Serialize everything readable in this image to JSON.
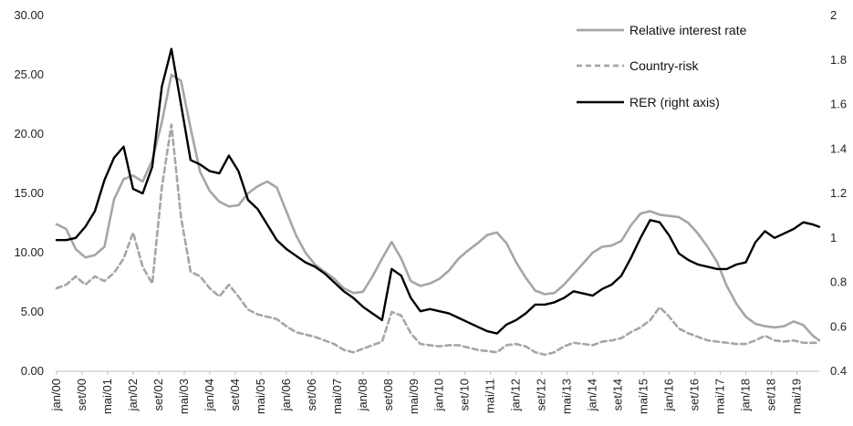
{
  "chart_data": {
    "type": "line",
    "title": "",
    "xlabel": "",
    "ylabel_left": "",
    "ylabel_right": "",
    "grid": false,
    "legend_position": "top-right",
    "left_axis": {
      "min": 0,
      "max": 30,
      "step": 5,
      "tick_labels": [
        "0.00",
        "5.00",
        "10.00",
        "15.00",
        "20.00",
        "25.00",
        "30.00"
      ]
    },
    "right_axis": {
      "min": 0.4,
      "max": 2.0,
      "step": 0.2,
      "tick_labels": [
        "0.4",
        "0.6",
        "0.8",
        "1",
        "1.2",
        "1.4",
        "1.6",
        "1.8",
        "2"
      ]
    },
    "x_range": [
      "2000-01",
      "2019-12"
    ],
    "x_tick_labels": [
      "jan/00",
      "set/00",
      "mai/01",
      "jan/02",
      "set/02",
      "mai/03",
      "jan/04",
      "set/04",
      "mai/05",
      "jan/06",
      "set/06",
      "mai/07",
      "jan/08",
      "set/08",
      "mai/09",
      "jan/10",
      "set/10",
      "mai/11",
      "jan/12",
      "set/12",
      "mai/13",
      "jan/14",
      "set/14",
      "mai/15",
      "jan/16",
      "set/16",
      "mai/17",
      "jan/18",
      "set/18",
      "mai/19"
    ],
    "series": [
      {
        "name": "Relative interest rate",
        "axis": "left",
        "color": "#a6a6a6",
        "style": "solid",
        "points": [
          [
            "2000-01",
            12.4
          ],
          [
            "2000-04",
            12.0
          ],
          [
            "2000-07",
            10.3
          ],
          [
            "2000-10",
            9.6
          ],
          [
            "2001-01",
            9.8
          ],
          [
            "2001-04",
            10.5
          ],
          [
            "2001-07",
            14.5
          ],
          [
            "2001-10",
            16.2
          ],
          [
            "2002-01",
            16.5
          ],
          [
            "2002-04",
            16.0
          ],
          [
            "2002-07",
            17.8
          ],
          [
            "2002-10",
            21.0
          ],
          [
            "2003-01",
            25.0
          ],
          [
            "2003-04",
            24.5
          ],
          [
            "2003-07",
            20.5
          ],
          [
            "2003-10",
            16.8
          ],
          [
            "2004-01",
            15.2
          ],
          [
            "2004-04",
            14.3
          ],
          [
            "2004-07",
            13.9
          ],
          [
            "2004-10",
            14.0
          ],
          [
            "2005-01",
            15.0
          ],
          [
            "2005-04",
            15.6
          ],
          [
            "2005-07",
            16.0
          ],
          [
            "2005-10",
            15.5
          ],
          [
            "2006-01",
            13.5
          ],
          [
            "2006-04",
            11.5
          ],
          [
            "2006-07",
            10.0
          ],
          [
            "2006-10",
            9.0
          ],
          [
            "2007-01",
            8.4
          ],
          [
            "2007-04",
            7.8
          ],
          [
            "2007-07",
            7.0
          ],
          [
            "2007-10",
            6.6
          ],
          [
            "2008-01",
            6.7
          ],
          [
            "2008-04",
            8.0
          ],
          [
            "2008-07",
            9.5
          ],
          [
            "2008-10",
            10.9
          ],
          [
            "2009-01",
            9.5
          ],
          [
            "2009-04",
            7.6
          ],
          [
            "2009-07",
            7.2
          ],
          [
            "2009-10",
            7.4
          ],
          [
            "2010-01",
            7.8
          ],
          [
            "2010-04",
            8.5
          ],
          [
            "2010-07",
            9.5
          ],
          [
            "2010-10",
            10.2
          ],
          [
            "2011-01",
            10.8
          ],
          [
            "2011-04",
            11.5
          ],
          [
            "2011-07",
            11.7
          ],
          [
            "2011-10",
            10.8
          ],
          [
            "2012-01",
            9.2
          ],
          [
            "2012-04",
            7.9
          ],
          [
            "2012-07",
            6.8
          ],
          [
            "2012-10",
            6.5
          ],
          [
            "2013-01",
            6.6
          ],
          [
            "2013-04",
            7.3
          ],
          [
            "2013-07",
            8.2
          ],
          [
            "2013-10",
            9.1
          ],
          [
            "2014-01",
            10.0
          ],
          [
            "2014-04",
            10.5
          ],
          [
            "2014-07",
            10.6
          ],
          [
            "2014-10",
            11.0
          ],
          [
            "2015-01",
            12.3
          ],
          [
            "2015-04",
            13.3
          ],
          [
            "2015-07",
            13.5
          ],
          [
            "2015-10",
            13.2
          ],
          [
            "2016-01",
            13.1
          ],
          [
            "2016-04",
            13.0
          ],
          [
            "2016-07",
            12.5
          ],
          [
            "2016-10",
            11.6
          ],
          [
            "2017-01",
            10.5
          ],
          [
            "2017-04",
            9.2
          ],
          [
            "2017-07",
            7.2
          ],
          [
            "2017-10",
            5.7
          ],
          [
            "2018-01",
            4.6
          ],
          [
            "2018-04",
            4.0
          ],
          [
            "2018-07",
            3.8
          ],
          [
            "2018-10",
            3.7
          ],
          [
            "2019-01",
            3.8
          ],
          [
            "2019-04",
            4.2
          ],
          [
            "2019-07",
            3.9
          ],
          [
            "2019-10",
            3.0
          ],
          [
            "2019-12",
            2.6
          ]
        ]
      },
      {
        "name": "Country-risk",
        "axis": "left",
        "color": "#a6a6a6",
        "style": "dashed",
        "points": [
          [
            "2000-01",
            7.0
          ],
          [
            "2000-04",
            7.3
          ],
          [
            "2000-07",
            8.0
          ],
          [
            "2000-10",
            7.3
          ],
          [
            "2001-01",
            8.0
          ],
          [
            "2001-04",
            7.6
          ],
          [
            "2001-07",
            8.3
          ],
          [
            "2001-10",
            9.5
          ],
          [
            "2002-01",
            11.7
          ],
          [
            "2002-04",
            8.8
          ],
          [
            "2002-07",
            7.4
          ],
          [
            "2002-10",
            15.5
          ],
          [
            "2003-01",
            20.8
          ],
          [
            "2003-04",
            13.0
          ],
          [
            "2003-07",
            8.4
          ],
          [
            "2003-10",
            8.0
          ],
          [
            "2004-01",
            7.0
          ],
          [
            "2004-04",
            6.3
          ],
          [
            "2004-07",
            7.3
          ],
          [
            "2004-10",
            6.3
          ],
          [
            "2005-01",
            5.2
          ],
          [
            "2005-04",
            4.8
          ],
          [
            "2005-07",
            4.6
          ],
          [
            "2005-10",
            4.4
          ],
          [
            "2006-01",
            3.8
          ],
          [
            "2006-04",
            3.3
          ],
          [
            "2006-07",
            3.1
          ],
          [
            "2006-10",
            2.9
          ],
          [
            "2007-01",
            2.6
          ],
          [
            "2007-04",
            2.3
          ],
          [
            "2007-07",
            1.8
          ],
          [
            "2007-10",
            1.6
          ],
          [
            "2008-01",
            1.9
          ],
          [
            "2008-04",
            2.2
          ],
          [
            "2008-07",
            2.5
          ],
          [
            "2008-10",
            5.0
          ],
          [
            "2009-01",
            4.7
          ],
          [
            "2009-04",
            3.2
          ],
          [
            "2009-07",
            2.3
          ],
          [
            "2009-10",
            2.2
          ],
          [
            "2010-01",
            2.1
          ],
          [
            "2010-04",
            2.2
          ],
          [
            "2010-07",
            2.2
          ],
          [
            "2010-10",
            2.0
          ],
          [
            "2011-01",
            1.8
          ],
          [
            "2011-04",
            1.7
          ],
          [
            "2011-07",
            1.6
          ],
          [
            "2011-10",
            2.2
          ],
          [
            "2012-01",
            2.3
          ],
          [
            "2012-04",
            2.1
          ],
          [
            "2012-07",
            1.6
          ],
          [
            "2012-10",
            1.4
          ],
          [
            "2013-01",
            1.6
          ],
          [
            "2013-04",
            2.1
          ],
          [
            "2013-07",
            2.4
          ],
          [
            "2013-10",
            2.3
          ],
          [
            "2014-01",
            2.2
          ],
          [
            "2014-04",
            2.5
          ],
          [
            "2014-07",
            2.6
          ],
          [
            "2014-10",
            2.8
          ],
          [
            "2015-01",
            3.3
          ],
          [
            "2015-04",
            3.7
          ],
          [
            "2015-07",
            4.3
          ],
          [
            "2015-10",
            5.4
          ],
          [
            "2016-01",
            4.6
          ],
          [
            "2016-04",
            3.6
          ],
          [
            "2016-07",
            3.2
          ],
          [
            "2016-10",
            2.9
          ],
          [
            "2017-01",
            2.6
          ],
          [
            "2017-04",
            2.5
          ],
          [
            "2017-07",
            2.4
          ],
          [
            "2017-10",
            2.3
          ],
          [
            "2018-01",
            2.3
          ],
          [
            "2018-04",
            2.6
          ],
          [
            "2018-07",
            3.0
          ],
          [
            "2018-10",
            2.6
          ],
          [
            "2019-01",
            2.5
          ],
          [
            "2019-04",
            2.6
          ],
          [
            "2019-07",
            2.4
          ],
          [
            "2019-10",
            2.4
          ],
          [
            "2019-12",
            2.4
          ]
        ]
      },
      {
        "name": "RER (right axis)",
        "axis": "right",
        "color": "#000000",
        "style": "solid",
        "points": [
          [
            "2000-01",
            0.99
          ],
          [
            "2000-04",
            0.99
          ],
          [
            "2000-07",
            1.0
          ],
          [
            "2000-10",
            1.05
          ],
          [
            "2001-01",
            1.12
          ],
          [
            "2001-04",
            1.26
          ],
          [
            "2001-07",
            1.36
          ],
          [
            "2001-10",
            1.41
          ],
          [
            "2002-01",
            1.22
          ],
          [
            "2002-04",
            1.2
          ],
          [
            "2002-07",
            1.32
          ],
          [
            "2002-10",
            1.68
          ],
          [
            "2003-01",
            1.85
          ],
          [
            "2003-04",
            1.6
          ],
          [
            "2003-07",
            1.35
          ],
          [
            "2003-10",
            1.33
          ],
          [
            "2004-01",
            1.3
          ],
          [
            "2004-04",
            1.29
          ],
          [
            "2004-07",
            1.37
          ],
          [
            "2004-10",
            1.3
          ],
          [
            "2005-01",
            1.17
          ],
          [
            "2005-04",
            1.13
          ],
          [
            "2005-07",
            1.06
          ],
          [
            "2005-10",
            0.99
          ],
          [
            "2006-01",
            0.95
          ],
          [
            "2006-04",
            0.92
          ],
          [
            "2006-07",
            0.89
          ],
          [
            "2006-10",
            0.87
          ],
          [
            "2007-01",
            0.84
          ],
          [
            "2007-04",
            0.8
          ],
          [
            "2007-07",
            0.76
          ],
          [
            "2007-10",
            0.73
          ],
          [
            "2008-01",
            0.69
          ],
          [
            "2008-04",
            0.66
          ],
          [
            "2008-07",
            0.63
          ],
          [
            "2008-10",
            0.86
          ],
          [
            "2009-01",
            0.83
          ],
          [
            "2009-04",
            0.73
          ],
          [
            "2009-07",
            0.67
          ],
          [
            "2009-10",
            0.68
          ],
          [
            "2010-01",
            0.67
          ],
          [
            "2010-04",
            0.66
          ],
          [
            "2010-07",
            0.64
          ],
          [
            "2010-10",
            0.62
          ],
          [
            "2011-01",
            0.6
          ],
          [
            "2011-04",
            0.58
          ],
          [
            "2011-07",
            0.57
          ],
          [
            "2011-10",
            0.61
          ],
          [
            "2012-01",
            0.63
          ],
          [
            "2012-04",
            0.66
          ],
          [
            "2012-07",
            0.7
          ],
          [
            "2012-10",
            0.7
          ],
          [
            "2013-01",
            0.71
          ],
          [
            "2013-04",
            0.73
          ],
          [
            "2013-07",
            0.76
          ],
          [
            "2013-10",
            0.75
          ],
          [
            "2014-01",
            0.74
          ],
          [
            "2014-04",
            0.77
          ],
          [
            "2014-07",
            0.79
          ],
          [
            "2014-10",
            0.83
          ],
          [
            "2015-01",
            0.91
          ],
          [
            "2015-04",
            1.0
          ],
          [
            "2015-07",
            1.08
          ],
          [
            "2015-10",
            1.07
          ],
          [
            "2016-01",
            1.01
          ],
          [
            "2016-04",
            0.93
          ],
          [
            "2016-07",
            0.9
          ],
          [
            "2016-10",
            0.88
          ],
          [
            "2017-01",
            0.87
          ],
          [
            "2017-04",
            0.86
          ],
          [
            "2017-07",
            0.86
          ],
          [
            "2017-10",
            0.88
          ],
          [
            "2018-01",
            0.89
          ],
          [
            "2018-04",
            0.98
          ],
          [
            "2018-07",
            1.03
          ],
          [
            "2018-10",
            1.0
          ],
          [
            "2019-01",
            1.02
          ],
          [
            "2019-04",
            1.04
          ],
          [
            "2019-07",
            1.07
          ],
          [
            "2019-10",
            1.06
          ],
          [
            "2019-12",
            1.05
          ]
        ]
      }
    ]
  }
}
